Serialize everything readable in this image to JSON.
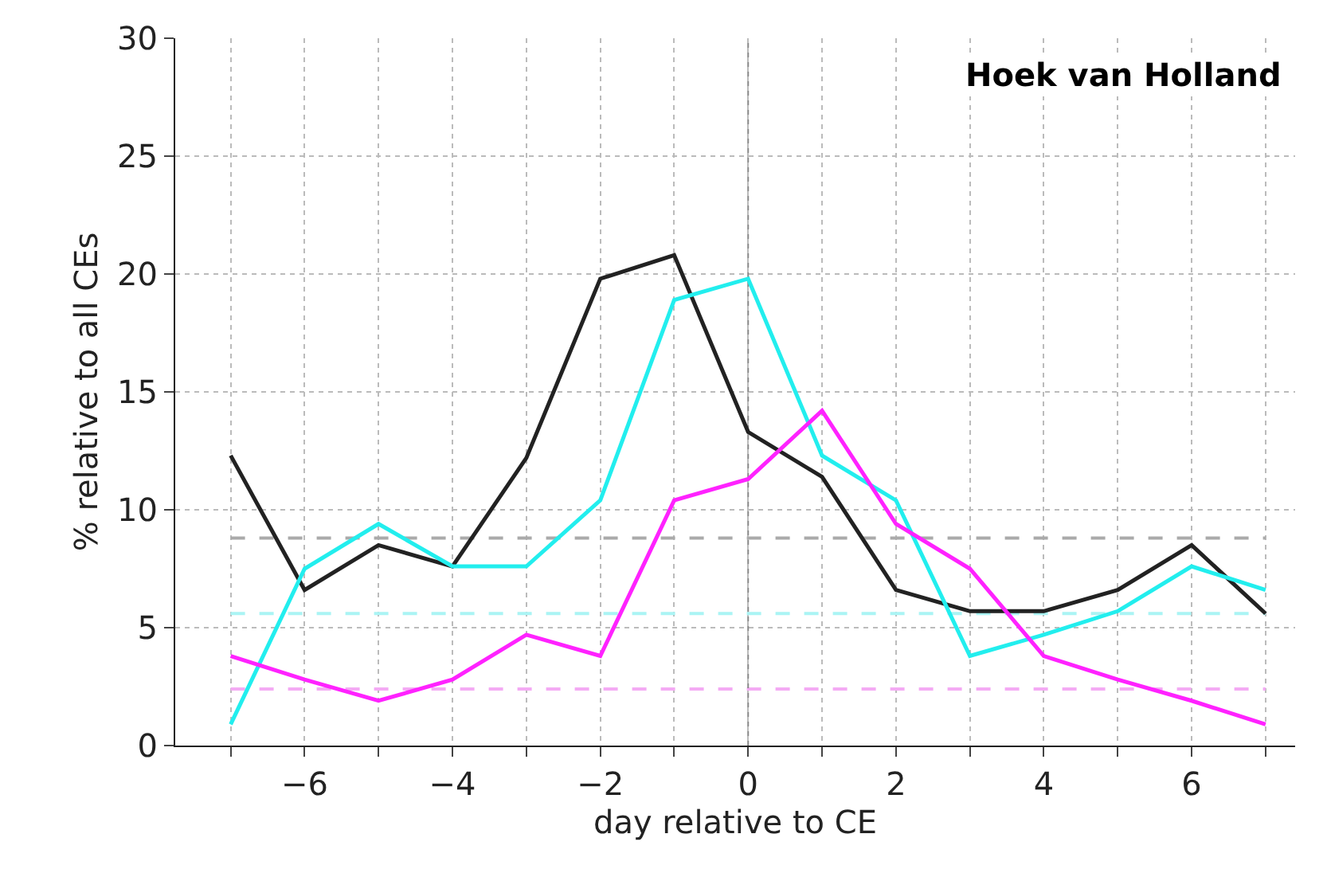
{
  "chart_data": {
    "type": "line",
    "xlabel": "day relative to CE",
    "ylabel": "% relative to all CEs",
    "annotations": [
      "Hoek van Holland"
    ],
    "x": [
      -7,
      -6,
      -5,
      -4,
      -3,
      -2,
      -1,
      0,
      1,
      2,
      3,
      4,
      5,
      6,
      7
    ],
    "series": [
      {
        "color": "#222222",
        "values": [
          12.3,
          6.6,
          8.5,
          7.6,
          12.2,
          19.8,
          20.8,
          13.3,
          11.4,
          6.6,
          5.7,
          5.7,
          6.6,
          8.5,
          5.6
        ]
      },
      {
        "color": "#22eeee",
        "values": [
          0.9,
          7.5,
          9.4,
          7.6,
          7.6,
          10.4,
          18.9,
          19.8,
          12.3,
          10.4,
          3.8,
          4.7,
          5.7,
          7.6,
          6.6
        ]
      },
      {
        "color": "#ff22ff",
        "values": [
          3.8,
          2.8,
          1.9,
          2.8,
          4.7,
          3.8,
          10.4,
          11.3,
          14.2,
          9.4,
          7.5,
          3.8,
          2.8,
          1.9,
          0.9
        ]
      }
    ],
    "ref_lines": [
      {
        "axis": "y",
        "value": 8.8,
        "color": "#aaaaaa",
        "line_style": "dashed"
      },
      {
        "axis": "y",
        "value": 5.6,
        "color": "#aaf4f4",
        "line_style": "dashed"
      },
      {
        "axis": "y",
        "value": 2.4,
        "color": "#f4aaf4",
        "line_style": "dashed"
      },
      {
        "axis": "x",
        "value": 0,
        "color": "#888888",
        "line_style": "dotted"
      }
    ],
    "xlim": [
      -7.75,
      7.4
    ],
    "xticks": [
      {
        "value": -7,
        "label": null
      },
      -6,
      {
        "value": -5,
        "label": null
      },
      -4,
      {
        "value": -3,
        "label": null
      },
      -2,
      {
        "value": -1,
        "label": null
      },
      0,
      {
        "value": 1,
        "label": null
      },
      2,
      {
        "value": 3,
        "label": null
      },
      4,
      {
        "value": 5,
        "label": null
      },
      6,
      {
        "value": 7,
        "label": null
      }
    ],
    "ylim": [
      0,
      30
    ],
    "yticks": [
      0,
      5,
      10,
      15,
      20,
      25,
      30
    ],
    "grid": true,
    "marker": "none",
    "line_style": "solid"
  }
}
